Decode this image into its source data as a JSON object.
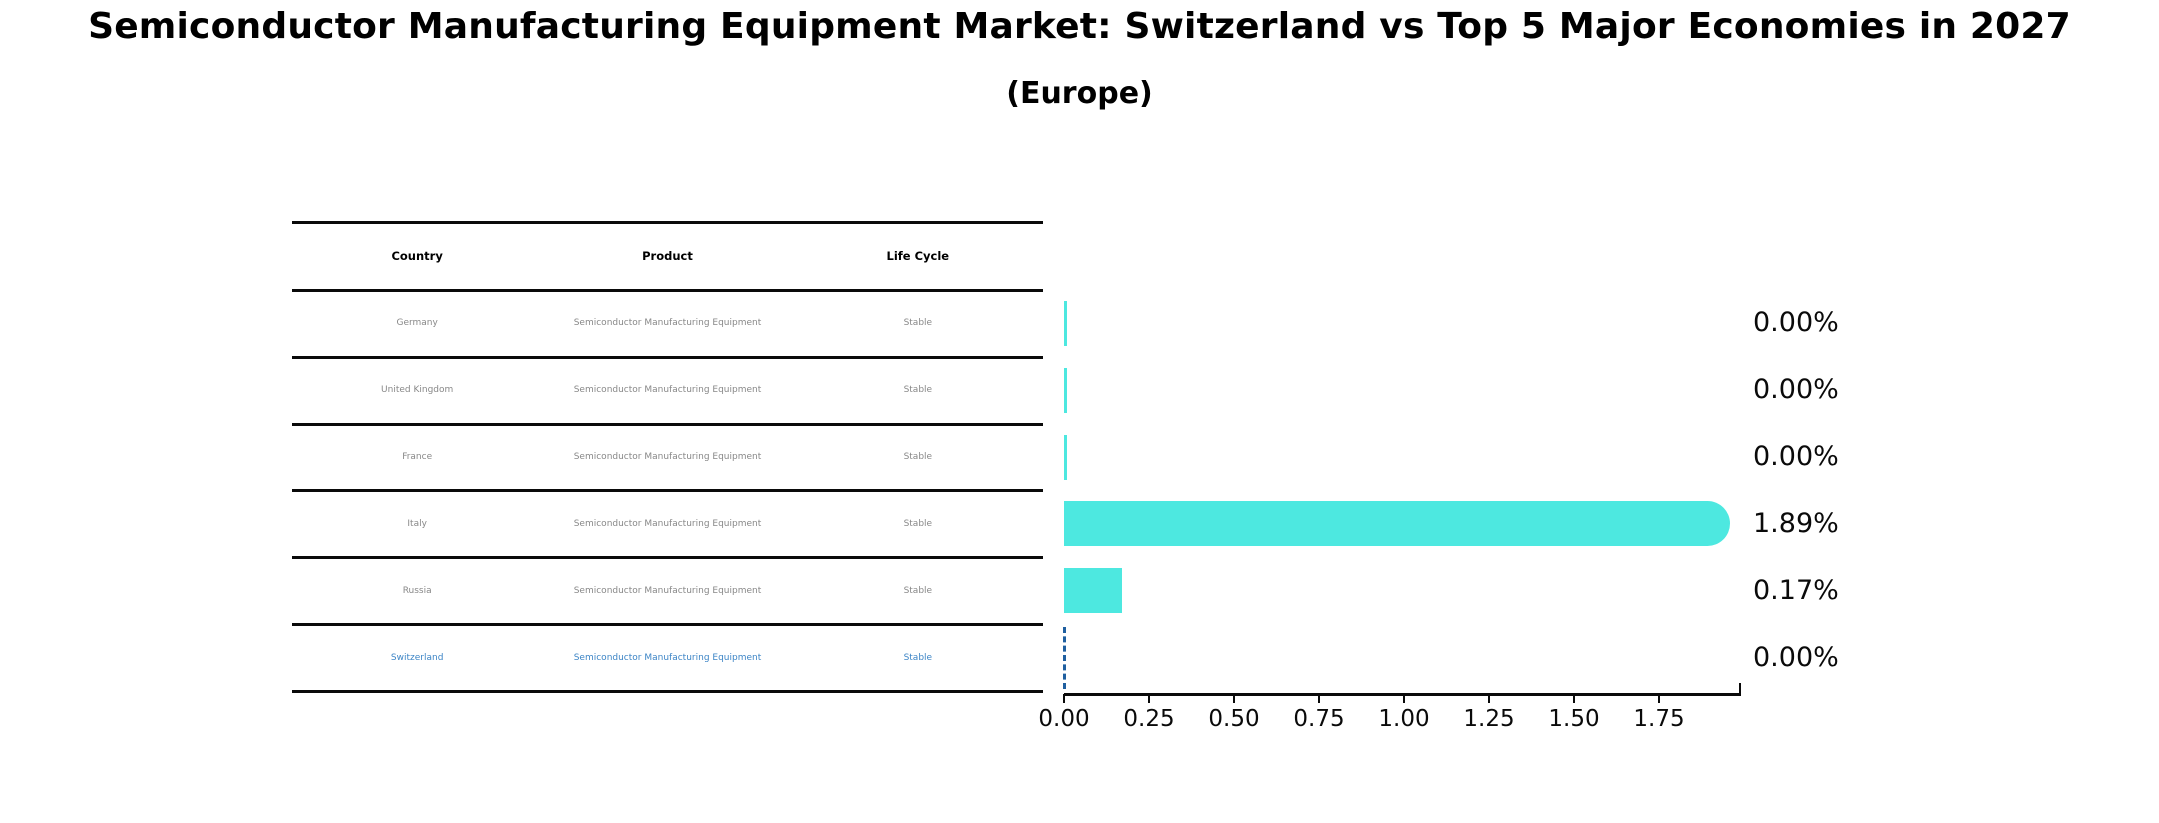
{
  "title": "Semiconductor Manufacturing Equipment Market: Switzerland vs Top 5 Major Economies in 2027",
  "subtitle": "(Europe)",
  "table": {
    "headers": [
      "Country",
      "Product",
      "Life Cycle"
    ],
    "rows": [
      {
        "country": "Germany",
        "product": "Semiconductor Manufacturing Equipment",
        "life_cycle": "Stable",
        "highlighted": false
      },
      {
        "country": "United Kingdom",
        "product": "Semiconductor Manufacturing Equipment",
        "life_cycle": "Stable",
        "highlighted": false
      },
      {
        "country": "France",
        "product": "Semiconductor Manufacturing Equipment",
        "life_cycle": "Stable",
        "highlighted": false
      },
      {
        "country": "Italy",
        "product": "Semiconductor Manufacturing Equipment",
        "life_cycle": "Stable",
        "highlighted": false
      },
      {
        "country": "Russia",
        "product": "Semiconductor Manufacturing Equipment",
        "life_cycle": "Stable",
        "highlighted": false
      },
      {
        "country": "Switzerland",
        "product": "Semiconductor Manufacturing Equipment",
        "life_cycle": "Stable",
        "highlighted": true
      }
    ]
  },
  "chart_data": {
    "type": "bar",
    "orientation": "horizontal",
    "title": "Semiconductor Manufacturing Equipment Market: Switzerland vs Top 5 Major Economies in 2027",
    "subtitle": "(Europe)",
    "categories": [
      "Germany",
      "United Kingdom",
      "France",
      "Italy",
      "Russia",
      "Switzerland"
    ],
    "values": [
      0.0,
      0.0,
      0.0,
      1.89,
      0.17,
      0.0
    ],
    "value_labels": [
      "0.00%",
      "0.00%",
      "0.00%",
      "1.89%",
      "0.17%",
      "0.00%"
    ],
    "x_tick_labels": [
      "0.00",
      "0.25",
      "0.50",
      "0.75",
      "1.00",
      "1.25",
      "1.50",
      "1.75"
    ],
    "xlim": [
      0,
      1.97
    ],
    "grid": false,
    "legend": false,
    "highlight_category": "Switzerland",
    "colors": {
      "bar": "#4de8e0",
      "highlight_marker": "#1f5fa0",
      "highlight_text": "#3d85c6",
      "row_text": "#888888",
      "axis": "#0a0a0a"
    }
  }
}
